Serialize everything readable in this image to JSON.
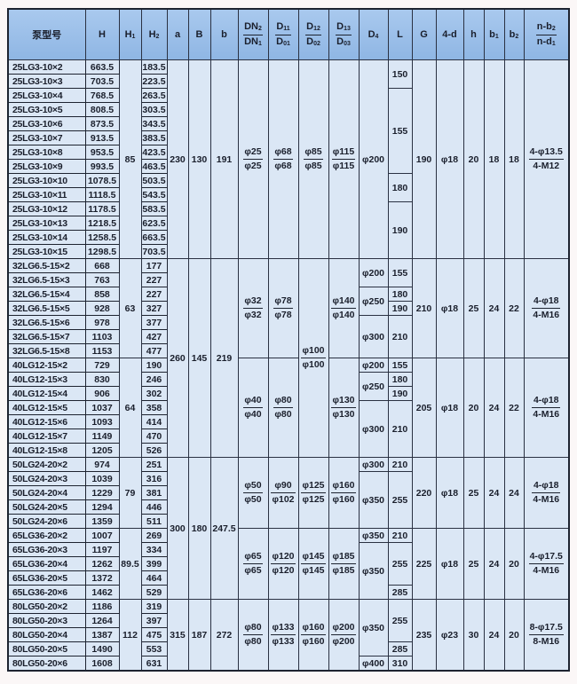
{
  "header": [
    {
      "t": "泵型号"
    },
    {
      "t": "H"
    },
    {
      "t": "H",
      "s": "1"
    },
    {
      "t": "H",
      "s": "2"
    },
    {
      "t": "a"
    },
    {
      "t": "B"
    },
    {
      "t": "b"
    },
    {
      "num": {
        "t": "DN",
        "s": "2"
      },
      "den": {
        "t": "DN",
        "s": "1"
      }
    },
    {
      "num": {
        "t": "D",
        "s": "11"
      },
      "den": {
        "t": "D",
        "s": "01"
      }
    },
    {
      "num": {
        "t": "D",
        "s": "12"
      },
      "den": {
        "t": "D",
        "s": "02"
      }
    },
    {
      "num": {
        "t": "D",
        "s": "13"
      },
      "den": {
        "t": "D",
        "s": "03"
      }
    },
    {
      "t": "D",
      "s": "4"
    },
    {
      "t": "L"
    },
    {
      "t": "G"
    },
    {
      "t": "4-d"
    },
    {
      "t": "h"
    },
    {
      "t": "b",
      "s": "1"
    },
    {
      "t": "b",
      "s": "2"
    },
    {
      "num": {
        "t": "n-b",
        "s": "2"
      },
      "den": {
        "t": "n-d",
        "s": "1"
      }
    }
  ],
  "rows": [
    {
      "model": "25LG3-10×2",
      "H": "663.5",
      "H2": "183.5"
    },
    {
      "model": "25LG3-10×3",
      "H": "703.5",
      "H2": "223.5"
    },
    {
      "model": "25LG3-10×4",
      "H": "768.5",
      "H2": "263.5"
    },
    {
      "model": "25LG3-10×5",
      "H": "808.5",
      "H2": "303.5"
    },
    {
      "model": "25LG3-10×6",
      "H": "873.5",
      "H2": "343.5"
    },
    {
      "model": "25LG3-10×7",
      "H": "913.5",
      "H2": "383.5"
    },
    {
      "model": "25LG3-10×8",
      "H": "953.5",
      "H2": "423.5"
    },
    {
      "model": "25LG3-10×9",
      "H": "993.5",
      "H2": "463.5"
    },
    {
      "model": "25LG3-10×10",
      "H": "1078.5",
      "H2": "503.5"
    },
    {
      "model": "25LG3-10×11",
      "H": "1118.5",
      "H2": "543.5"
    },
    {
      "model": "25LG3-10×12",
      "H": "1178.5",
      "H2": "583.5"
    },
    {
      "model": "25LG3-10×13",
      "H": "1218.5",
      "H2": "623.5"
    },
    {
      "model": "25LG3-10×14",
      "H": "1258.5",
      "H2": "663.5"
    },
    {
      "model": "25LG3-10×15",
      "H": "1298.5",
      "H2": "703.5"
    },
    {
      "model": "32LG6.5-15×2",
      "H": "668",
      "H2": "177"
    },
    {
      "model": "32LG6.5-15×3",
      "H": "763",
      "H2": "227"
    },
    {
      "model": "32LG6.5-15×4",
      "H": "858",
      "H2": "227"
    },
    {
      "model": "32LG6.5-15×5",
      "H": "928",
      "H2": "327"
    },
    {
      "model": "32LG6.5-15×6",
      "H": "978",
      "H2": "377"
    },
    {
      "model": "32LG6.5-15×7",
      "H": "1103",
      "H2": "427"
    },
    {
      "model": "32LG6.5-15×8",
      "H": "1153",
      "H2": "477"
    },
    {
      "model": "40LG12-15×2",
      "H": "729",
      "H2": "190"
    },
    {
      "model": "40LG12-15×3",
      "H": "830",
      "H2": "246"
    },
    {
      "model": "40LG12-15×4",
      "H": "906",
      "H2": "302"
    },
    {
      "model": "40LG12-15×5",
      "H": "1037",
      "H2": "358"
    },
    {
      "model": "40LG12-15×6",
      "H": "1093",
      "H2": "414"
    },
    {
      "model": "40LG12-15×7",
      "H": "1149",
      "H2": "470"
    },
    {
      "model": "40LG12-15×8",
      "H": "1205",
      "H2": "526"
    },
    {
      "model": "50LG24-20×2",
      "H": "974",
      "H2": "251"
    },
    {
      "model": "50LG24-20×3",
      "H": "1039",
      "H2": "316"
    },
    {
      "model": "50LG24-20×4",
      "H": "1229",
      "H2": "381"
    },
    {
      "model": "50LG24-20×5",
      "H": "1294",
      "H2": "446"
    },
    {
      "model": "50LG24-20×6",
      "H": "1359",
      "H2": "511"
    },
    {
      "model": "65LG36-20×2",
      "H": "1007",
      "H2": "269"
    },
    {
      "model": "65LG36-20×3",
      "H": "1197",
      "H2": "334"
    },
    {
      "model": "65LG36-20×4",
      "H": "1262",
      "H2": "399"
    },
    {
      "model": "65LG36-20×5",
      "H": "1372",
      "H2": "464"
    },
    {
      "model": "65LG36-20×6",
      "H": "1462",
      "H2": "529"
    },
    {
      "model": "80LG50-20×2",
      "H": "1186",
      "H2": "319"
    },
    {
      "model": "80LG50-20×3",
      "H": "1264",
      "H2": "397"
    },
    {
      "model": "80LG50-20×4",
      "H": "1387",
      "H2": "475"
    },
    {
      "model": "80LG50-20×5",
      "H": "1490",
      "H2": "553"
    },
    {
      "model": "80LG50-20×6",
      "H": "1608",
      "H2": "631"
    }
  ],
  "merged_cells": [
    {
      "col": 2,
      "row": 0,
      "rows": 14,
      "v": "85"
    },
    {
      "col": 4,
      "row": 0,
      "rows": 14,
      "v": "230"
    },
    {
      "col": 5,
      "row": 0,
      "rows": 14,
      "v": "130"
    },
    {
      "col": 6,
      "row": 0,
      "rows": 14,
      "v": "191"
    },
    {
      "col": 7,
      "row": 0,
      "rows": 14,
      "v": "φ25",
      "d": "φ25"
    },
    {
      "col": 8,
      "row": 0,
      "rows": 14,
      "v": "φ68",
      "d": "φ68"
    },
    {
      "col": 9,
      "row": 0,
      "rows": 14,
      "v": "φ85",
      "d": "φ85"
    },
    {
      "col": 10,
      "row": 0,
      "rows": 14,
      "v": "φ115",
      "d": "φ115"
    },
    {
      "col": 11,
      "row": 0,
      "rows": 14,
      "v": "φ200"
    },
    {
      "col": 12,
      "row": 0,
      "rows": 2,
      "v": "150"
    },
    {
      "col": 12,
      "row": 2,
      "rows": 6,
      "v": "155"
    },
    {
      "col": 12,
      "row": 8,
      "rows": 2,
      "v": "180"
    },
    {
      "col": 12,
      "row": 10,
      "rows": 4,
      "v": "190"
    },
    {
      "col": 13,
      "row": 0,
      "rows": 14,
      "v": "190"
    },
    {
      "col": 14,
      "row": 0,
      "rows": 14,
      "v": "φ18"
    },
    {
      "col": 15,
      "row": 0,
      "rows": 14,
      "v": "20"
    },
    {
      "col": 16,
      "row": 0,
      "rows": 14,
      "v": "18"
    },
    {
      "col": 17,
      "row": 0,
      "rows": 14,
      "v": "18"
    },
    {
      "col": 18,
      "row": 0,
      "rows": 14,
      "v": "4-φ13.5",
      "d": "4-M12"
    },
    {
      "col": 2,
      "row": 14,
      "rows": 7,
      "v": "63"
    },
    {
      "col": 4,
      "row": 14,
      "rows": 14,
      "v": "260"
    },
    {
      "col": 5,
      "row": 14,
      "rows": 14,
      "v": "145"
    },
    {
      "col": 6,
      "row": 14,
      "rows": 14,
      "v": "219"
    },
    {
      "col": 7,
      "row": 14,
      "rows": 7,
      "v": "φ32",
      "d": "φ32"
    },
    {
      "col": 8,
      "row": 14,
      "rows": 7,
      "v": "φ78",
      "d": "φ78"
    },
    {
      "col": 9,
      "row": 14,
      "rows": 14,
      "v": "φ100",
      "d": "φ100"
    },
    {
      "col": 10,
      "row": 14,
      "rows": 7,
      "v": "φ140",
      "d": "φ140"
    },
    {
      "col": 11,
      "row": 14,
      "rows": 2,
      "v": "φ200"
    },
    {
      "col": 12,
      "row": 14,
      "rows": 2,
      "v": "155"
    },
    {
      "col": 11,
      "row": 16,
      "rows": 2,
      "v": "φ250"
    },
    {
      "col": 12,
      "row": 16,
      "rows": 1,
      "v": "180"
    },
    {
      "col": 12,
      "row": 17,
      "rows": 1,
      "v": "190"
    },
    {
      "col": 11,
      "row": 18,
      "rows": 3,
      "v": "φ300"
    },
    {
      "col": 12,
      "row": 18,
      "rows": 3,
      "v": "210"
    },
    {
      "col": 13,
      "row": 14,
      "rows": 7,
      "v": "210"
    },
    {
      "col": 14,
      "row": 14,
      "rows": 7,
      "v": "φ18"
    },
    {
      "col": 15,
      "row": 14,
      "rows": 7,
      "v": "25"
    },
    {
      "col": 16,
      "row": 14,
      "rows": 7,
      "v": "24"
    },
    {
      "col": 17,
      "row": 14,
      "rows": 7,
      "v": "22"
    },
    {
      "col": 18,
      "row": 14,
      "rows": 7,
      "v": "4-φ18",
      "d": "4-M16"
    },
    {
      "col": 2,
      "row": 21,
      "rows": 7,
      "v": "64"
    },
    {
      "col": 7,
      "row": 21,
      "rows": 7,
      "v": "φ40",
      "d": "φ40"
    },
    {
      "col": 8,
      "row": 21,
      "rows": 7,
      "v": "φ80",
      "d": "φ80"
    },
    {
      "col": 10,
      "row": 21,
      "rows": 7,
      "v": "φ130",
      "d": "φ130"
    },
    {
      "col": 11,
      "row": 21,
      "rows": 1,
      "v": "φ200"
    },
    {
      "col": 12,
      "row": 21,
      "rows": 1,
      "v": "155"
    },
    {
      "col": 11,
      "row": 22,
      "rows": 2,
      "v": "φ250"
    },
    {
      "col": 12,
      "row": 22,
      "rows": 1,
      "v": "180"
    },
    {
      "col": 12,
      "row": 23,
      "rows": 1,
      "v": "190"
    },
    {
      "col": 11,
      "row": 24,
      "rows": 4,
      "v": "φ300"
    },
    {
      "col": 12,
      "row": 24,
      "rows": 4,
      "v": "210"
    },
    {
      "col": 13,
      "row": 21,
      "rows": 7,
      "v": "205"
    },
    {
      "col": 14,
      "row": 21,
      "rows": 7,
      "v": "φ18"
    },
    {
      "col": 15,
      "row": 21,
      "rows": 7,
      "v": "20"
    },
    {
      "col": 16,
      "row": 21,
      "rows": 7,
      "v": "24"
    },
    {
      "col": 17,
      "row": 21,
      "rows": 7,
      "v": "22"
    },
    {
      "col": 18,
      "row": 21,
      "rows": 7,
      "v": "4-φ18",
      "d": "4-M16"
    },
    {
      "col": 2,
      "row": 28,
      "rows": 5,
      "v": "79"
    },
    {
      "col": 4,
      "row": 28,
      "rows": 10,
      "v": "300"
    },
    {
      "col": 5,
      "row": 28,
      "rows": 10,
      "v": "180"
    },
    {
      "col": 6,
      "row": 28,
      "rows": 10,
      "v": "247.5"
    },
    {
      "col": 7,
      "row": 28,
      "rows": 5,
      "v": "φ50",
      "d": "φ50"
    },
    {
      "col": 8,
      "row": 28,
      "rows": 5,
      "v": "φ90",
      "d": "φ102"
    },
    {
      "col": 9,
      "row": 28,
      "rows": 5,
      "v": "φ125",
      "d": "φ125"
    },
    {
      "col": 10,
      "row": 28,
      "rows": 5,
      "v": "φ160",
      "d": "φ160"
    },
    {
      "col": 11,
      "row": 28,
      "rows": 1,
      "v": "φ300"
    },
    {
      "col": 12,
      "row": 28,
      "rows": 1,
      "v": "210"
    },
    {
      "col": 11,
      "row": 29,
      "rows": 4,
      "v": "φ350"
    },
    {
      "col": 12,
      "row": 29,
      "rows": 4,
      "v": "255"
    },
    {
      "col": 13,
      "row": 28,
      "rows": 5,
      "v": "220"
    },
    {
      "col": 14,
      "row": 28,
      "rows": 5,
      "v": "φ18"
    },
    {
      "col": 15,
      "row": 28,
      "rows": 5,
      "v": "25"
    },
    {
      "col": 16,
      "row": 28,
      "rows": 5,
      "v": "24"
    },
    {
      "col": 17,
      "row": 28,
      "rows": 5,
      "v": "24"
    },
    {
      "col": 18,
      "row": 28,
      "rows": 5,
      "v": "4-φ18",
      "d": "4-M16"
    },
    {
      "col": 2,
      "row": 33,
      "rows": 5,
      "v": "89.5"
    },
    {
      "col": 7,
      "row": 33,
      "rows": 5,
      "v": "φ65",
      "d": "φ65"
    },
    {
      "col": 8,
      "row": 33,
      "rows": 5,
      "v": "φ120",
      "d": "φ120"
    },
    {
      "col": 9,
      "row": 33,
      "rows": 5,
      "v": "φ145",
      "d": "φ145"
    },
    {
      "col": 10,
      "row": 33,
      "rows": 5,
      "v": "φ185",
      "d": "φ185"
    },
    {
      "col": 11,
      "row": 33,
      "rows": 1,
      "v": "φ350"
    },
    {
      "col": 12,
      "row": 33,
      "rows": 1,
      "v": "210"
    },
    {
      "col": 11,
      "row": 34,
      "rows": 4,
      "v": "φ350"
    },
    {
      "col": 12,
      "row": 34,
      "rows": 3,
      "v": "255"
    },
    {
      "col": 12,
      "row": 37,
      "rows": 1,
      "v": "285"
    },
    {
      "col": 13,
      "row": 33,
      "rows": 5,
      "v": "225"
    },
    {
      "col": 14,
      "row": 33,
      "rows": 5,
      "v": "φ18"
    },
    {
      "col": 15,
      "row": 33,
      "rows": 5,
      "v": "25"
    },
    {
      "col": 16,
      "row": 33,
      "rows": 5,
      "v": "24"
    },
    {
      "col": 17,
      "row": 33,
      "rows": 5,
      "v": "20"
    },
    {
      "col": 18,
      "row": 33,
      "rows": 5,
      "v": "4-φ17.5",
      "d": "4-M16"
    },
    {
      "col": 2,
      "row": 38,
      "rows": 5,
      "v": "112"
    },
    {
      "col": 4,
      "row": 38,
      "rows": 5,
      "v": "315"
    },
    {
      "col": 5,
      "row": 38,
      "rows": 5,
      "v": "187"
    },
    {
      "col": 6,
      "row": 38,
      "rows": 5,
      "v": "272"
    },
    {
      "col": 7,
      "row": 38,
      "rows": 5,
      "v": "φ80",
      "d": "φ80"
    },
    {
      "col": 8,
      "row": 38,
      "rows": 5,
      "v": "φ133",
      "d": "φ133"
    },
    {
      "col": 9,
      "row": 38,
      "rows": 5,
      "v": "φ160",
      "d": "φ160"
    },
    {
      "col": 10,
      "row": 38,
      "rows": 5,
      "v": "φ200",
      "d": "φ200"
    },
    {
      "col": 11,
      "row": 38,
      "rows": 4,
      "v": "φ350"
    },
    {
      "col": 11,
      "row": 42,
      "rows": 1,
      "v": "φ400"
    },
    {
      "col": 12,
      "row": 38,
      "rows": 3,
      "v": "255"
    },
    {
      "col": 12,
      "row": 41,
      "rows": 1,
      "v": "285"
    },
    {
      "col": 12,
      "row": 42,
      "rows": 1,
      "v": "310"
    },
    {
      "col": 13,
      "row": 38,
      "rows": 5,
      "v": "235"
    },
    {
      "col": 14,
      "row": 38,
      "rows": 5,
      "v": "φ23"
    },
    {
      "col": 15,
      "row": 38,
      "rows": 5,
      "v": "30"
    },
    {
      "col": 16,
      "row": 38,
      "rows": 5,
      "v": "24"
    },
    {
      "col": 17,
      "row": 38,
      "rows": 5,
      "v": "20"
    },
    {
      "col": 18,
      "row": 38,
      "rows": 5,
      "v": "8-φ17.5",
      "d": "8-M16"
    }
  ]
}
